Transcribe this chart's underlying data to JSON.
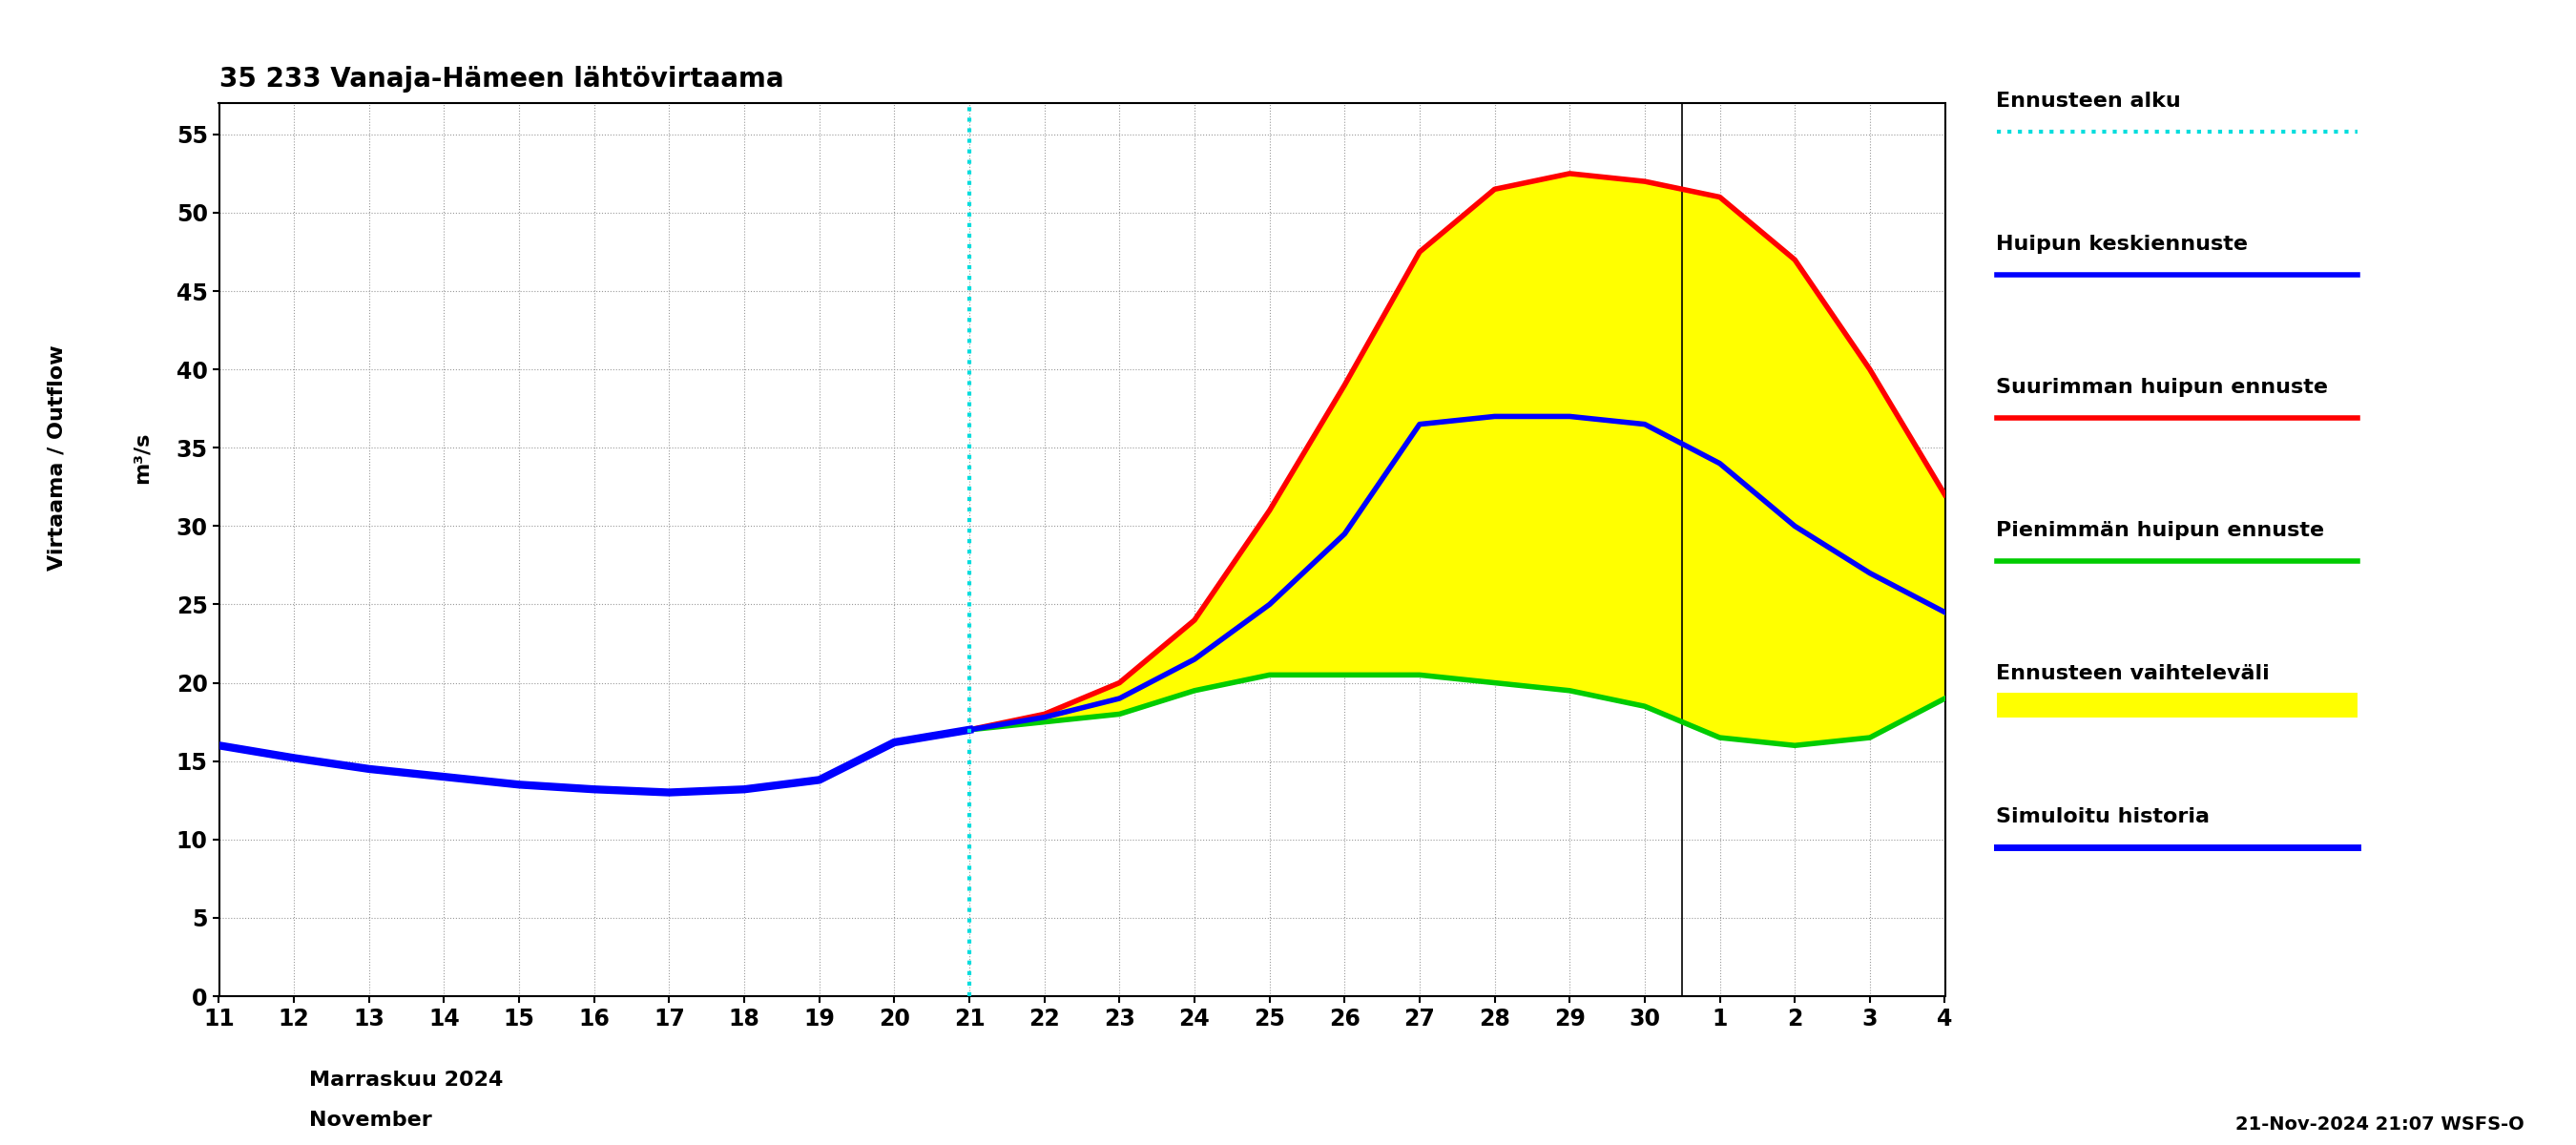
{
  "title": "35 233 Vanaja-Hämeen lähtövirtaama",
  "ylabel1": "Virtaama / Outflow",
  "ylabel2": "m³/s",
  "xlabel1": "Marraskuu 2024",
  "xlabel2": "November",
  "footer": "21-Nov-2024 21:07 WSFS-O",
  "ylim": [
    0,
    57
  ],
  "yticks": [
    0,
    5,
    10,
    15,
    20,
    25,
    30,
    35,
    40,
    45,
    50,
    55
  ],
  "xtick_labels": [
    "11",
    "12",
    "13",
    "14",
    "15",
    "16",
    "17",
    "18",
    "19",
    "20",
    "21",
    "22",
    "23",
    "24",
    "25",
    "26",
    "27",
    "28",
    "29",
    "30",
    "1",
    "2",
    "3",
    "4"
  ],
  "history_x": [
    11,
    12,
    13,
    14,
    15,
    16,
    17,
    18,
    19,
    20,
    21
  ],
  "history_y": [
    16.0,
    15.2,
    14.5,
    14.0,
    13.5,
    13.2,
    13.0,
    13.2,
    13.8,
    16.2,
    17.0
  ],
  "forecast_x": [
    21,
    22,
    23,
    24,
    25,
    26,
    27,
    28,
    29,
    30,
    31,
    32,
    33,
    34
  ],
  "mean_y": [
    17.0,
    17.8,
    19.0,
    21.5,
    25.0,
    29.5,
    36.5,
    37.0,
    37.0,
    36.5,
    34.0,
    30.0,
    27.0,
    24.5
  ],
  "max_y": [
    17.0,
    18.0,
    20.0,
    24.0,
    31.0,
    39.0,
    47.5,
    51.5,
    52.5,
    52.0,
    51.0,
    47.0,
    40.0,
    32.0
  ],
  "min_y": [
    17.0,
    17.5,
    18.0,
    19.5,
    20.5,
    20.5,
    20.5,
    20.0,
    19.5,
    18.5,
    16.5,
    16.0,
    16.5,
    19.0
  ],
  "color_history": "#0000ff",
  "color_mean": "#0000ff",
  "color_max": "#ff0000",
  "color_min": "#00cc00",
  "color_fill": "#ffff00",
  "color_vline": "#00dddd",
  "color_grid": "#999999"
}
